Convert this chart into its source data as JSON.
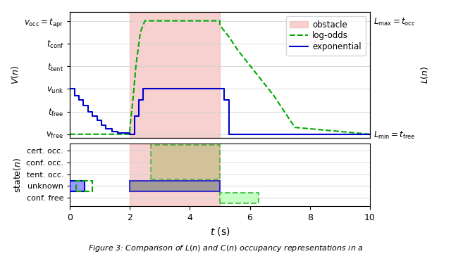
{
  "xlim": [
    0,
    10
  ],
  "xticks": [
    0,
    2,
    4,
    6,
    8,
    10
  ],
  "obstacle_start": 2.0,
  "obstacle_end": 5.0,
  "obstacle_color": "#f4b8b8",
  "obstacle_alpha": 0.65,
  "ytick_labels_top": [
    "$v_\\mathrm{free}$",
    "$t_\\mathrm{free}$",
    "$v_\\mathrm{unk}$",
    "$t_\\mathrm{tent}$",
    "$t_\\mathrm{conf}$",
    "$v_\\mathrm{occ}=t_\\mathrm{apr}$"
  ],
  "ytick_positions_top": [
    0,
    1,
    2,
    3,
    4,
    5
  ],
  "yright_label_top": "$L_\\mathrm{max}=t_\\mathrm{occ}$",
  "yright_label_bot": "$L_\\mathrm{min}=t_\\mathrm{free}$",
  "state_labels": [
    "conf. free",
    "unknown",
    "tent. occ.",
    "conf. occ.",
    "cert. occ."
  ],
  "state_positions": [
    0,
    1,
    2,
    3,
    4
  ],
  "log_odds_color": "#00aa00",
  "exp_color": "#0000cc",
  "log_odds_x": [
    0.0,
    1.8,
    1.8,
    2.0,
    2.0,
    2.1,
    2.2,
    2.35,
    2.5,
    5.0,
    5.0,
    5.3,
    5.6,
    5.9,
    6.2,
    6.5,
    6.8,
    7.1,
    7.5,
    10.0
  ],
  "log_odds_y": [
    0.0,
    0.0,
    0.0,
    0.0,
    0.3,
    1.5,
    3.0,
    4.5,
    5.0,
    5.0,
    4.8,
    4.3,
    3.7,
    3.2,
    2.7,
    2.2,
    1.7,
    1.1,
    0.3,
    0.0
  ],
  "exp_x": [
    0.0,
    0.0,
    0.15,
    0.15,
    0.3,
    0.3,
    0.45,
    0.45,
    0.6,
    0.6,
    0.75,
    0.75,
    0.9,
    0.9,
    1.05,
    1.05,
    1.2,
    1.2,
    1.4,
    1.4,
    1.6,
    1.6,
    2.0,
    2.0,
    2.15,
    2.15,
    2.3,
    2.3,
    2.45,
    2.45,
    5.0,
    5.0,
    5.15,
    5.15,
    5.3,
    5.3,
    10.0
  ],
  "exp_y": [
    2.0,
    2.0,
    2.0,
    1.7,
    1.7,
    1.5,
    1.5,
    1.25,
    1.25,
    1.0,
    1.0,
    0.8,
    0.8,
    0.6,
    0.6,
    0.4,
    0.4,
    0.25,
    0.25,
    0.12,
    0.12,
    0.04,
    0.04,
    0.0,
    0.0,
    0.8,
    0.8,
    1.5,
    1.5,
    2.0,
    2.0,
    2.0,
    2.0,
    1.5,
    1.5,
    0.0,
    0.0
  ],
  "state_blue_x1_start": 0.0,
  "state_blue_x1_end": 0.5,
  "state_green_x1_start": 0.2,
  "state_green_x1_end": 0.75,
  "state_blue_x2_start": 2.0,
  "state_blue_x2_end": 5.0,
  "state_green_occ_start": 2.7,
  "state_green_occ_end": 5.0,
  "state_green_free_start": 5.0,
  "state_green_free_end": 6.3,
  "gray_color": "#888888",
  "green_fill_color": "#aaffaa",
  "tan_fill_color": "#b8b870"
}
